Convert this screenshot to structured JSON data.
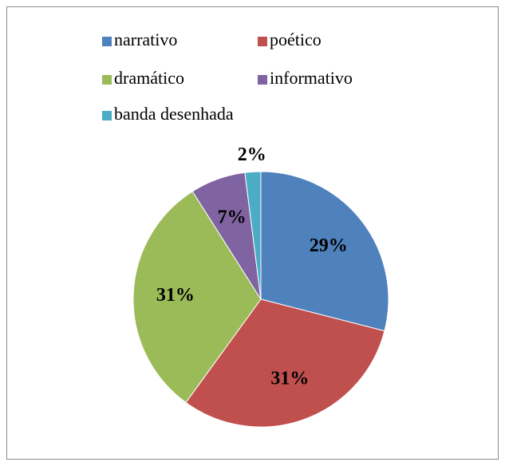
{
  "chart_data": {
    "type": "pie",
    "categories": [
      "narrativo",
      "poético",
      "dramático",
      "informativo",
      "banda desenhada"
    ],
    "values": [
      29,
      31,
      31,
      7,
      2
    ],
    "value_labels": [
      "29%",
      "31%",
      "31%",
      "7%",
      "2%"
    ],
    "colors": [
      "#4f81bd",
      "#c0504d",
      "#9bbb59",
      "#8064a2",
      "#4bacc6"
    ],
    "legend": "top"
  }
}
